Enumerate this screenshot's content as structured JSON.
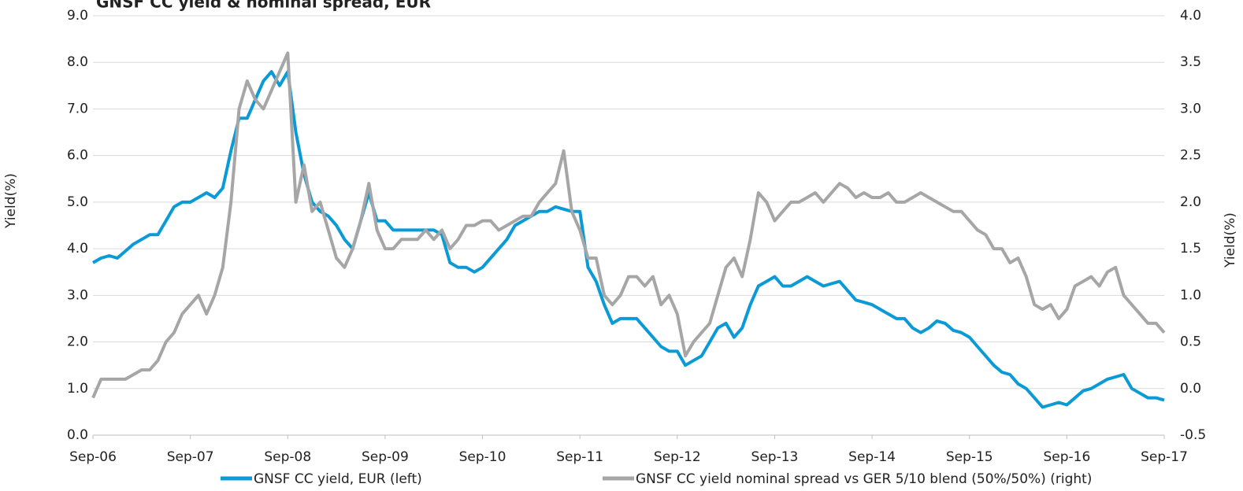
{
  "chart_data": {
    "type": "line",
    "title": "GNSF CC yield & nominal spread, EUR",
    "ylabel": "Yield(%)",
    "y2label": "Yield(%)",
    "categories": [
      "Sep-06",
      null,
      null,
      null,
      null,
      null,
      null,
      null,
      null,
      null,
      null,
      null,
      "Sep-07",
      null,
      null,
      null,
      null,
      null,
      null,
      null,
      null,
      null,
      null,
      null,
      "Sep-08",
      null,
      null,
      null,
      null,
      null,
      null,
      null,
      null,
      null,
      null,
      null,
      "Sep-09",
      null,
      null,
      null,
      null,
      null,
      null,
      null,
      null,
      null,
      null,
      null,
      "Sep-10",
      null,
      null,
      null,
      null,
      null,
      null,
      null,
      null,
      null,
      null,
      null,
      "Sep-11",
      null,
      null,
      null,
      null,
      null,
      null,
      null,
      null,
      null,
      null,
      null,
      "Sep-12",
      null,
      null,
      null,
      null,
      null,
      null,
      null,
      null,
      null,
      null,
      null,
      "Sep-13",
      null,
      null,
      null,
      null,
      null,
      null,
      null,
      null,
      null,
      null,
      null,
      "Sep-14",
      null,
      null,
      null,
      null,
      null,
      null,
      null,
      null,
      null,
      null,
      null,
      "Sep-15",
      null,
      null,
      null,
      null,
      null,
      null,
      null,
      null,
      null,
      null,
      null,
      "Sep-16",
      null,
      null,
      null,
      null,
      null,
      null,
      null,
      null,
      null,
      null,
      null,
      "Sep-17"
    ],
    "series": [
      {
        "name": "GNSF CC yield, EUR (left)",
        "color": "#0a9ad6",
        "axis": "y",
        "values": [
          3.7,
          3.8,
          3.85,
          3.8,
          3.95,
          4.1,
          4.2,
          4.3,
          4.3,
          4.6,
          4.9,
          5.0,
          5.0,
          5.1,
          5.2,
          5.1,
          5.3,
          6.1,
          6.8,
          6.8,
          7.2,
          7.6,
          7.8,
          7.5,
          7.8,
          6.5,
          5.6,
          5.0,
          4.8,
          4.7,
          4.5,
          4.2,
          4.0,
          4.6,
          5.2,
          4.6,
          4.6,
          4.4,
          4.4,
          4.4,
          4.4,
          4.4,
          4.4,
          4.3,
          3.7,
          3.6,
          3.6,
          3.5,
          3.6,
          3.8,
          4.0,
          4.2,
          4.5,
          4.6,
          4.7,
          4.8,
          4.8,
          4.9,
          4.85,
          4.8,
          4.8,
          3.6,
          3.3,
          2.8,
          2.4,
          2.5,
          2.5,
          2.5,
          2.3,
          2.1,
          1.9,
          1.8,
          1.8,
          1.5,
          1.6,
          1.7,
          2.0,
          2.3,
          2.4,
          2.1,
          2.3,
          2.8,
          3.2,
          3.3,
          3.4,
          3.2,
          3.2,
          3.3,
          3.4,
          3.3,
          3.2,
          3.25,
          3.3,
          3.1,
          2.9,
          2.85,
          2.8,
          2.7,
          2.6,
          2.5,
          2.5,
          2.3,
          2.2,
          2.3,
          2.45,
          2.4,
          2.25,
          2.2,
          2.1,
          1.9,
          1.7,
          1.5,
          1.35,
          1.3,
          1.1,
          1.0,
          0.8,
          0.6,
          0.65,
          0.7,
          0.65,
          0.8,
          0.95,
          1.0,
          1.1,
          1.2,
          1.25,
          1.3,
          1.0,
          0.9,
          0.8,
          0.8,
          0.75
        ]
      },
      {
        "name": "GNSF CC yield nominal spread vs GER 5/10 blend (50%/50%) (right)",
        "color": "#a6a6a6",
        "axis": "y2",
        "values": [
          -0.1,
          0.1,
          0.1,
          0.1,
          0.1,
          0.15,
          0.2,
          0.2,
          0.3,
          0.5,
          0.6,
          0.8,
          0.9,
          1.0,
          0.8,
          1.0,
          1.3,
          2.0,
          3.0,
          3.3,
          3.1,
          3.0,
          3.2,
          3.4,
          3.6,
          2.0,
          2.4,
          1.9,
          2.0,
          1.7,
          1.4,
          1.3,
          1.5,
          1.8,
          2.2,
          1.7,
          1.5,
          1.5,
          1.6,
          1.6,
          1.6,
          1.7,
          1.6,
          1.7,
          1.5,
          1.6,
          1.75,
          1.75,
          1.8,
          1.8,
          1.7,
          1.75,
          1.8,
          1.85,
          1.85,
          2.0,
          2.1,
          2.2,
          2.55,
          1.9,
          1.7,
          1.4,
          1.4,
          1.0,
          0.9,
          1.0,
          1.2,
          1.2,
          1.1,
          1.2,
          0.9,
          1.0,
          0.8,
          0.35,
          0.5,
          0.6,
          0.7,
          1.0,
          1.3,
          1.4,
          1.2,
          1.6,
          2.1,
          2.0,
          1.8,
          1.9,
          2.0,
          2.0,
          2.05,
          2.1,
          2.0,
          2.1,
          2.2,
          2.15,
          2.05,
          2.1,
          2.05,
          2.05,
          2.1,
          2.0,
          2.0,
          2.05,
          2.1,
          2.05,
          2.0,
          1.95,
          1.9,
          1.9,
          1.8,
          1.7,
          1.65,
          1.5,
          1.5,
          1.35,
          1.4,
          1.2,
          0.9,
          0.85,
          0.9,
          0.75,
          0.85,
          1.1,
          1.15,
          1.2,
          1.1,
          1.25,
          1.3,
          1.0,
          0.9,
          0.8,
          0.7,
          0.7,
          0.6
        ]
      }
    ],
    "ylim": [
      0,
      9
    ],
    "yticks": [
      {
        "value": 0,
        "label": "0.0"
      },
      {
        "value": 1,
        "label": "1.0"
      },
      {
        "value": 2,
        "label": "2.0"
      },
      {
        "value": 3,
        "label": "3.0"
      },
      {
        "value": 4,
        "label": "4.0"
      },
      {
        "value": 5,
        "label": "5.0"
      },
      {
        "value": 6,
        "label": "6.0"
      },
      {
        "value": 7,
        "label": "7.0"
      },
      {
        "value": 8,
        "label": "8.0"
      },
      {
        "value": 9,
        "label": "9.0"
      }
    ],
    "y2lim": [
      -0.5,
      4
    ],
    "y2ticks": [
      -0.5,
      {
        "value": 0,
        "label": "0.0"
      },
      0.5,
      {
        "value": 1,
        "label": "1.0"
      },
      1.5,
      {
        "value": 2,
        "label": "2.0"
      },
      2.5,
      {
        "value": 3,
        "label": "3.0"
      },
      3.5,
      {
        "value": 4,
        "label": "4.0"
      }
    ],
    "grid": true,
    "legend": "bottom"
  }
}
